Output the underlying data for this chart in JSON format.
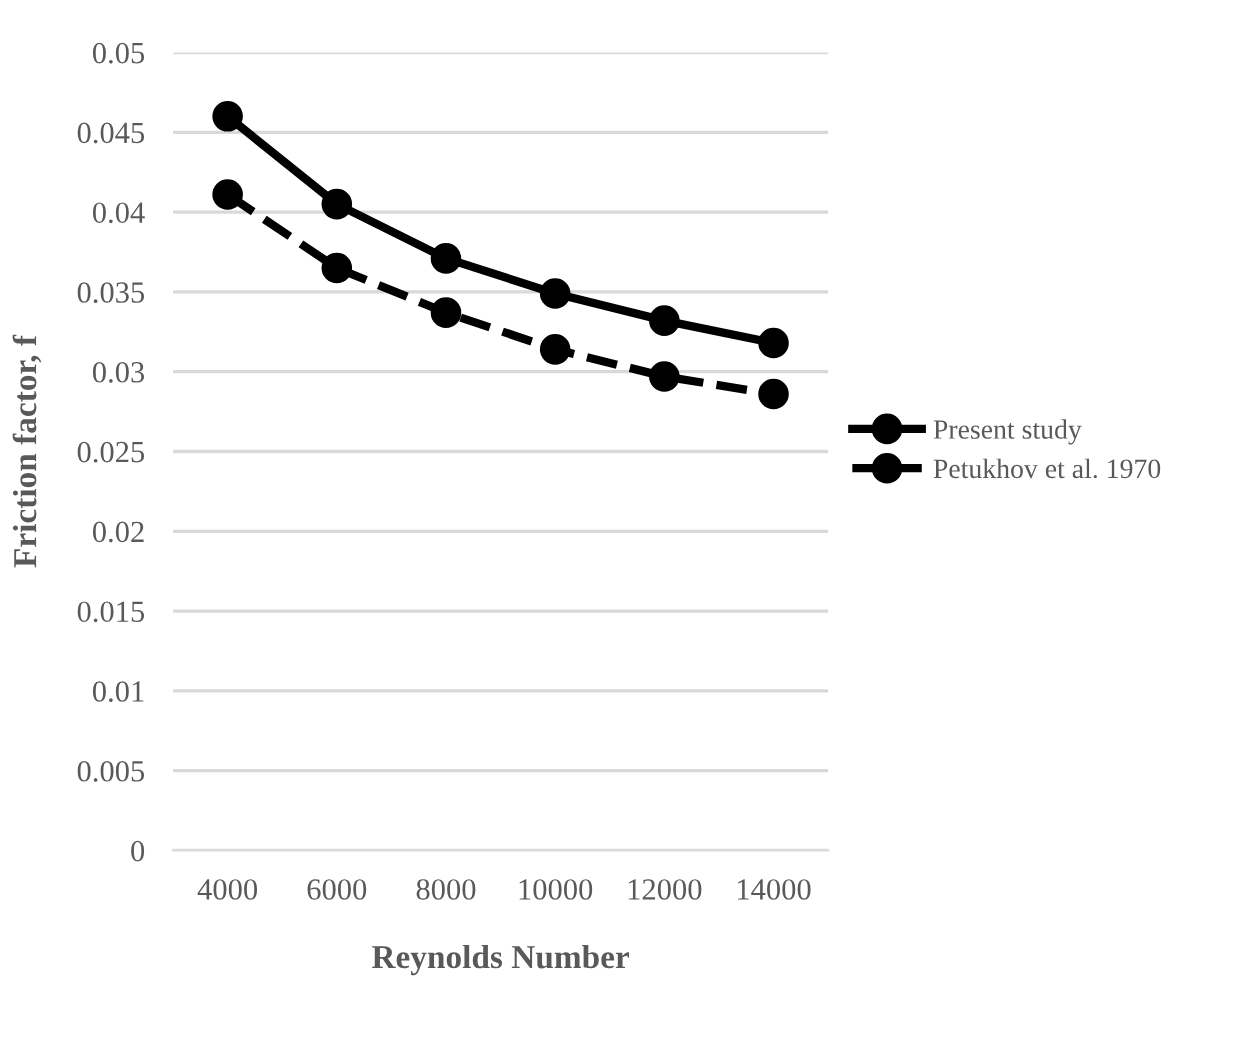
{
  "chart_data": {
    "type": "line",
    "xlabel": "Reynolds Number",
    "ylabel": "Friction factor, f",
    "categories": [
      "4000",
      "6000",
      "8000",
      "10000",
      "12000",
      "14000"
    ],
    "series": [
      {
        "name": "Present study",
        "color": "#000000",
        "line_style": "solid",
        "values": [
          0.046,
          0.0405,
          0.0371,
          0.0349,
          0.0332,
          0.0318
        ]
      },
      {
        "name": "Petukhov et al. 1970",
        "color": "#000000",
        "line_style": "dashed",
        "values": [
          0.0411,
          0.0365,
          0.0337,
          0.0314,
          0.0297,
          0.0286
        ]
      }
    ],
    "ylim": [
      0,
      0.05
    ],
    "yticks": [
      0,
      0.005,
      0.01,
      0.015,
      0.02,
      0.025,
      0.03,
      0.035,
      0.04,
      0.045,
      0.05
    ],
    "grid": "y",
    "legend": "right",
    "marker": "circle"
  }
}
